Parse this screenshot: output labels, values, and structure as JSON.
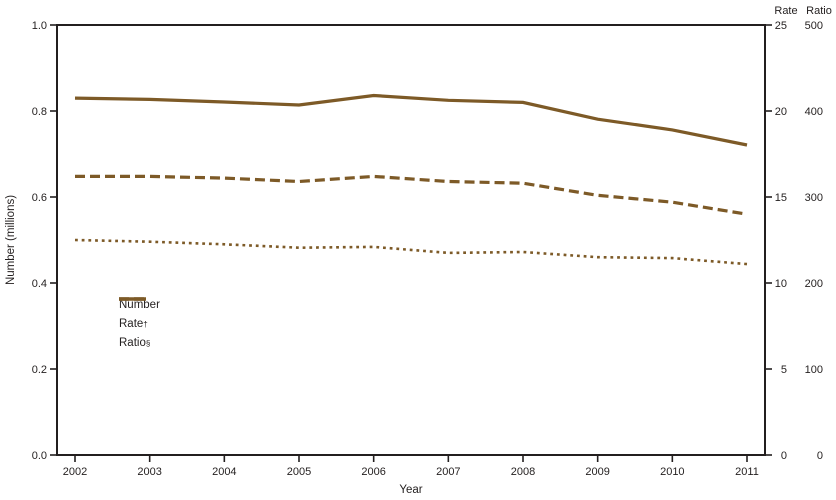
{
  "figure": {
    "y_axis_label": "Number (millions)",
    "x_axis_label": "Year",
    "rate_header": "Rate",
    "ratio_header": "Ratio"
  },
  "legend": {
    "items": [
      {
        "label": "Number",
        "sup": "",
        "style": "solid"
      },
      {
        "label": "Rate",
        "sup": "†",
        "style": "dashed"
      },
      {
        "label": "Ratio",
        "sup": "§",
        "style": "dotted"
      }
    ]
  },
  "colors": {
    "line": "#7d5a27",
    "axis": "#231f1f",
    "text": "#231f1f",
    "background": "#ffffff"
  },
  "chart_data": {
    "type": "line",
    "title": "",
    "xlabel": "Year",
    "ylabel_left": "Number (millions)",
    "x": [
      2002,
      2003,
      2004,
      2005,
      2006,
      2007,
      2008,
      2009,
      2010,
      2011
    ],
    "series": [
      {
        "name": "Number",
        "axis": "number_millions",
        "style": "solid",
        "values": [
          0.83,
          0.827,
          0.821,
          0.814,
          0.836,
          0.825,
          0.82,
          0.781,
          0.756,
          0.721
        ]
      },
      {
        "name": "Rate",
        "axis": "rate",
        "style": "dashed",
        "values": [
          16.2,
          16.2,
          16.1,
          15.9,
          16.2,
          15.9,
          15.8,
          15.1,
          14.7,
          14.0
        ]
      },
      {
        "name": "Ratio",
        "axis": "ratio",
        "style": "dotted",
        "values": [
          250,
          248,
          245,
          241,
          242,
          235,
          236,
          230,
          229,
          222
        ]
      }
    ],
    "axes": {
      "number_millions": {
        "label": "Number (millions)",
        "side": "left",
        "range": [
          0,
          1
        ],
        "tick_labels": [
          "0.0",
          "0.2",
          "0.4",
          "0.6",
          "0.8",
          "1.0"
        ]
      },
      "rate": {
        "label": "Rate",
        "side": "right",
        "range": [
          0,
          25
        ],
        "tick_labels": [
          "0",
          "5",
          "10",
          "15",
          "20",
          "25"
        ]
      },
      "ratio": {
        "label": "Ratio",
        "side": "right-outer",
        "range": [
          0,
          500
        ],
        "tick_labels": [
          "0",
          "100",
          "200",
          "300",
          "400",
          "500"
        ]
      },
      "x": {
        "label": "Year",
        "tick_labels": [
          "2002",
          "2003",
          "2004",
          "2005",
          "2006",
          "2007",
          "2008",
          "2009",
          "2010",
          "2011"
        ]
      }
    },
    "legend_position": "inside-left-middle",
    "grid": false
  }
}
